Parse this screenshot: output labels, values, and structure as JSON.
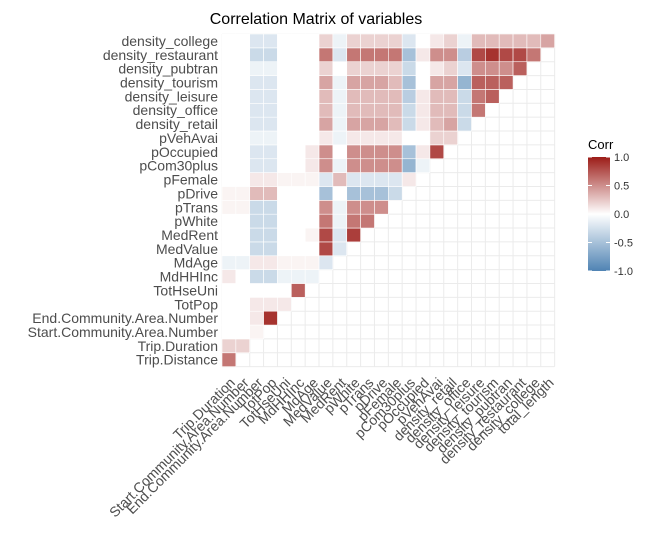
{
  "chart_data": {
    "type": "heatmap",
    "title": "Correlation Matrix of variables",
    "xlabel": "",
    "ylabel": "",
    "variables": [
      "Trip.Distance",
      "Trip.Duration",
      "Start.Community.Area.Number",
      "End.Community.Area.Number",
      "TotPop",
      "TotHseUni",
      "MdHHInc",
      "MdAge",
      "MedValue",
      "MedRent",
      "pWhite",
      "pTrans",
      "pDrive",
      "pFemale",
      "pCom30plus",
      "pOccupied",
      "pVehAvai",
      "density_retail",
      "density_office",
      "density_leisure",
      "density_tourism",
      "density_pubtran",
      "density_restaurant",
      "density_college",
      "total_length"
    ],
    "x_labels": [
      "Trip.Duration",
      "Start.Community.Area.Number",
      "End.Community.Area.Number",
      "TotPop",
      "TotHseUni",
      "MdHHInc",
      "MdAge",
      "MedValue",
      "MedRent",
      "pWhite",
      "pTrans",
      "pDrive",
      "pFemale",
      "pCom30plus",
      "pOccupied",
      "pVehAvai",
      "density_retail",
      "density_office",
      "density_leisure",
      "density_tourism",
      "density_pubtran",
      "density_restaurant",
      "density_college",
      "total_length"
    ],
    "y_labels": [
      "density_college",
      "density_restaurant",
      "density_pubtran",
      "density_tourism",
      "density_leisure",
      "density_office",
      "density_retail",
      "pVehAvai",
      "pOccupied",
      "pCom30plus",
      "pFemale",
      "pDrive",
      "pTrans",
      "pWhite",
      "MedRent",
      "MedValue",
      "MdAge",
      "MdHHInc",
      "TotHseUni",
      "TotPop",
      "End.Community.Area.Number",
      "Start.Community.Area.Number",
      "Trip.Duration",
      "Trip.Distance"
    ],
    "values": [
      [
        0.6
      ],
      [
        0.2,
        0.2
      ],
      [
        0.0,
        0.0,
        0.05
      ],
      [
        0.0,
        0.0,
        0.1,
        0.9
      ],
      [
        0.0,
        0.0,
        0.1,
        0.1,
        0.1
      ],
      [
        0.0,
        0.0,
        0.0,
        0.0,
        0.0,
        0.7
      ],
      [
        0.1,
        0.0,
        -0.3,
        -0.3,
        -0.1,
        -0.1,
        -0.1
      ],
      [
        -0.1,
        -0.1,
        0.1,
        0.1,
        0.05,
        0.05,
        0.05,
        -0.2
      ],
      [
        0.0,
        0.0,
        -0.3,
        -0.3,
        0.0,
        0.0,
        0.0,
        0.8,
        -0.2
      ],
      [
        0.0,
        0.0,
        -0.3,
        -0.3,
        0.0,
        0.0,
        0.05,
        0.8,
        -0.2,
        0.85
      ],
      [
        0.0,
        0.0,
        -0.3,
        -0.3,
        0.0,
        0.0,
        0.0,
        0.6,
        -0.1,
        0.6,
        0.6
      ],
      [
        0.05,
        0.05,
        -0.3,
        -0.3,
        0.0,
        0.0,
        0.0,
        0.5,
        -0.1,
        0.5,
        0.5,
        0.5
      ],
      [
        0.05,
        0.05,
        0.3,
        0.3,
        0.0,
        0.0,
        0.0,
        -0.5,
        0.0,
        -0.5,
        -0.5,
        -0.5,
        -0.3
      ],
      [
        0.0,
        0.0,
        0.1,
        0.1,
        0.05,
        0.05,
        0.05,
        -0.2,
        0.3,
        -0.2,
        -0.2,
        -0.2,
        -0.2,
        0.1
      ],
      [
        0.0,
        0.0,
        -0.2,
        -0.2,
        0.0,
        0.0,
        0.1,
        0.5,
        -0.1,
        0.5,
        0.5,
        0.5,
        0.5,
        -0.6,
        -0.1
      ],
      [
        0.0,
        0.0,
        -0.2,
        -0.2,
        0.0,
        0.0,
        0.1,
        0.5,
        0.0,
        0.5,
        0.5,
        0.5,
        0.5,
        -0.5,
        0.1,
        0.8
      ],
      [
        0.0,
        0.0,
        -0.1,
        -0.1,
        0.0,
        0.0,
        0.0,
        0.1,
        -0.1,
        0.1,
        0.1,
        0.1,
        0.1,
        0.0,
        0.0,
        0.2,
        0.2
      ],
      [
        0.0,
        0.0,
        -0.2,
        -0.2,
        0.0,
        0.0,
        0.0,
        0.4,
        -0.1,
        0.4,
        0.4,
        0.4,
        0.3,
        -0.3,
        0.1,
        0.3,
        0.4,
        -0.3
      ],
      [
        0.0,
        0.0,
        -0.2,
        -0.2,
        0.0,
        0.0,
        0.0,
        0.3,
        -0.1,
        0.3,
        0.3,
        0.3,
        0.3,
        -0.3,
        0.1,
        0.3,
        0.3,
        -0.3,
        0.6
      ],
      [
        0.0,
        0.0,
        -0.2,
        -0.2,
        0.0,
        0.0,
        0.0,
        0.3,
        -0.1,
        0.3,
        0.3,
        0.3,
        0.3,
        -0.4,
        0.1,
        0.3,
        0.3,
        -0.3,
        0.6,
        0.7
      ],
      [
        0.0,
        0.0,
        -0.2,
        -0.2,
        0.0,
        0.0,
        0.0,
        0.4,
        -0.1,
        0.4,
        0.4,
        0.4,
        0.3,
        -0.5,
        0.0,
        0.4,
        0.4,
        -0.6,
        0.7,
        0.7,
        0.7
      ],
      [
        0.0,
        0.0,
        -0.1,
        -0.1,
        0.0,
        0.0,
        0.0,
        0.2,
        0.0,
        0.2,
        0.2,
        0.2,
        0.2,
        -0.3,
        0.0,
        0.1,
        0.2,
        -0.2,
        0.5,
        0.5,
        0.5,
        0.7
      ],
      [
        0.0,
        0.0,
        -0.3,
        -0.3,
        0.0,
        0.0,
        0.0,
        0.6,
        -0.2,
        0.6,
        0.6,
        0.6,
        0.6,
        -0.5,
        0.1,
        0.5,
        0.5,
        -0.4,
        0.8,
        0.9,
        0.8,
        0.8,
        0.6
      ],
      [
        0.0,
        0.0,
        -0.2,
        -0.2,
        0.0,
        0.0,
        0.0,
        0.2,
        -0.1,
        0.2,
        0.2,
        0.2,
        0.2,
        -0.2,
        0.0,
        0.1,
        0.2,
        -0.1,
        0.3,
        0.3,
        0.3,
        0.3,
        0.3,
        0.4
      ]
    ],
    "legend": {
      "title": "Corr",
      "ticks": [
        "1.0",
        "0.5",
        "0.0",
        "-0.5",
        "-1.0"
      ],
      "limits": [
        -1,
        1
      ],
      "placement": "right"
    },
    "colors": {
      "low": "#4f83b3",
      "mid": "#ffffff",
      "high": "#9c1c18"
    }
  }
}
